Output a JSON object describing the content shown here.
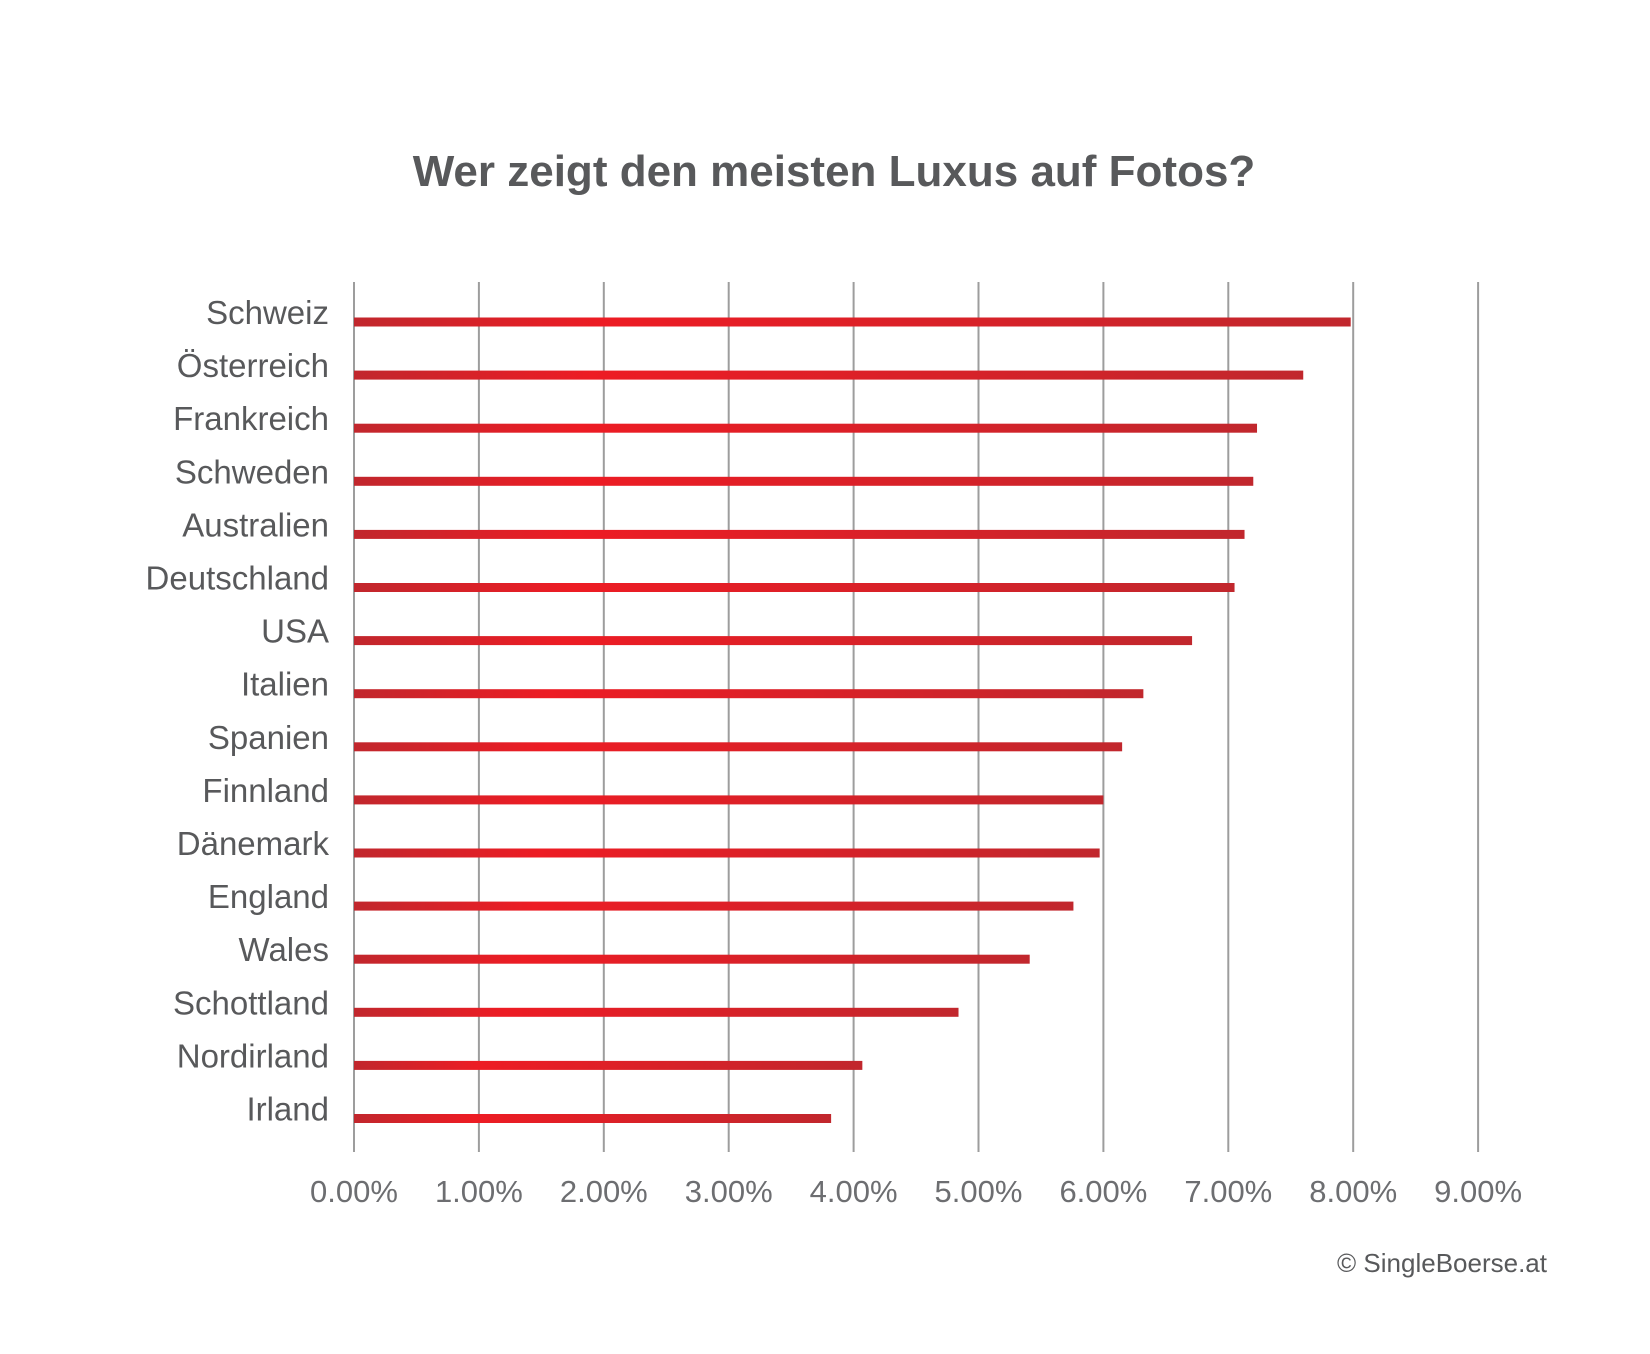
{
  "chart_data": {
    "type": "bar",
    "orientation": "horizontal",
    "title": "Wer zeigt den meisten Luxus auf Fotos?",
    "categories": [
      "Schweiz",
      "Österreich",
      "Frankreich",
      "Schweden",
      "Australien",
      "Deutschland",
      "USA",
      "Italien",
      "Spanien",
      "Finnland",
      "Dänemark",
      "England",
      "Wales",
      "Schottland",
      "Nordirland",
      "Irland"
    ],
    "values": [
      7.98,
      7.6,
      7.23,
      7.2,
      7.13,
      7.05,
      6.71,
      6.32,
      6.15,
      6.0,
      5.97,
      5.76,
      5.41,
      4.84,
      4.07,
      3.82
    ],
    "value_unit": "%",
    "xlim": [
      0,
      9
    ],
    "xticks": [
      0,
      1,
      2,
      3,
      4,
      5,
      6,
      7,
      8,
      9
    ],
    "xtick_labels": [
      "0.00%",
      "1.00%",
      "2.00%",
      "3.00%",
      "4.00%",
      "5.00%",
      "6.00%",
      "7.00%",
      "8.00%",
      "9.00%"
    ],
    "xlabel": "",
    "ylabel": "",
    "grid": "vertical",
    "legend": "none",
    "colors": {
      "bar_edge": "#c1272d",
      "bar_center": "#ed1c24",
      "grid": "#9d9d9d",
      "title": "#58595b",
      "labels": "#58595b"
    }
  },
  "credit": "© SingleBoerse.at"
}
